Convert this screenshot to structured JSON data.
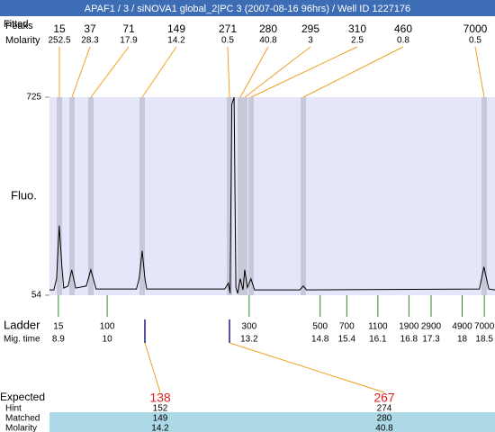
{
  "header": {
    "title": "APAF1 / 3 / siNOVA1 global_2|PC 3 (2007-08-16 96hrs) / Well ID 1227176"
  },
  "peaks": {
    "label_a": "Fitted",
    "label_b": "Peaks",
    "molarity_label": "Molarity",
    "sizes": [
      15,
      37,
      71,
      149,
      271,
      280,
      295,
      310,
      460,
      7000
    ],
    "molarities": [
      252.5,
      28.3,
      17.9,
      14.2,
      0.5,
      40.8,
      3,
      2.5,
      0.8,
      0.5
    ]
  },
  "chart": {
    "y_label": "Fluo.",
    "ylim": [
      54,
      725
    ],
    "yticks": [
      54,
      725
    ],
    "xlim": [
      8.7,
      18.74
    ],
    "trace": {
      "x": [
        8.7,
        8.8,
        8.86,
        8.92,
        8.98,
        9.02,
        9.12,
        9.2,
        9.29,
        9.53,
        9.63,
        9.75,
        10.66,
        10.72,
        10.79,
        10.85,
        10.89,
        12.65,
        12.73,
        12.77,
        12.81,
        12.86,
        12.9,
        12.94,
        13.0,
        13.06,
        13.1,
        13.16,
        13.24,
        13.32,
        14.34,
        14.42,
        14.49,
        18.39,
        18.49,
        18.6,
        18.74
      ],
      "y": [
        72,
        72,
        110,
        290,
        150,
        78,
        85,
        140,
        78,
        85,
        140,
        75,
        75,
        110,
        205,
        110,
        75,
        75,
        95,
        60,
        700,
        725,
        80,
        60,
        110,
        72,
        140,
        80,
        110,
        72,
        72,
        85,
        72,
        75,
        150,
        75,
        72
      ]
    }
  },
  "ladder": {
    "label": "Ladder",
    "time_label": "Mig. time",
    "sizes": [
      15,
      100,
      300,
      500,
      700,
      1100,
      1900,
      2900,
      4900,
      7000
    ],
    "times": [
      8.9,
      10,
      13.2,
      14.8,
      15.4,
      16.1,
      16.8,
      17.3,
      18,
      18.5
    ]
  },
  "expected": {
    "label": "Expected",
    "hint_label": "Hint",
    "matched_label": "Matched",
    "molarity_label": "Molarity",
    "columns": [
      {
        "expected": 138,
        "hint": 152,
        "matched": 149,
        "molarity": 14.2
      },
      {
        "expected": 267,
        "hint": 274,
        "matched": 280,
        "molarity": 40.8
      }
    ]
  }
}
